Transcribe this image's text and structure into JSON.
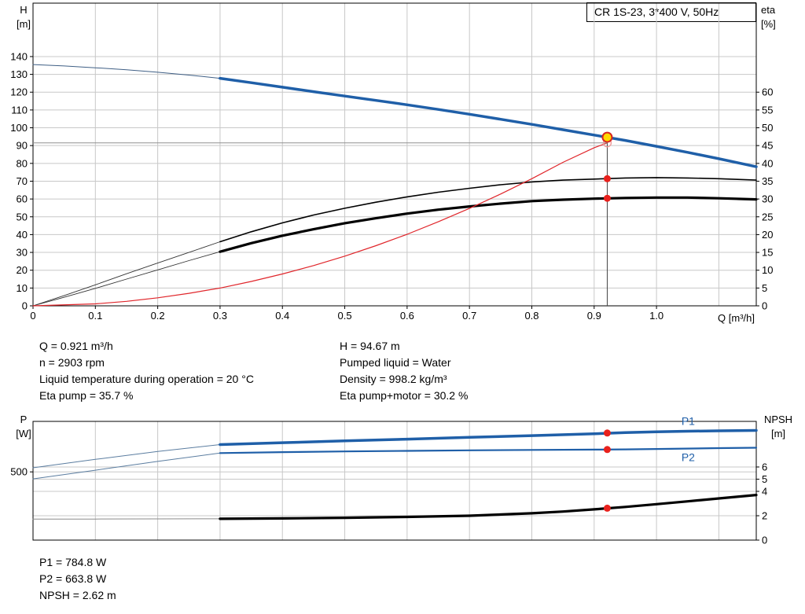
{
  "title_box": {
    "label": "CR 1S-23, 3*400 V, 50Hz"
  },
  "axes_headers": {
    "top_left_1": "H",
    "top_left_2": "[m]",
    "top_right_1": "eta",
    "top_right_2": "[%]",
    "bottom_left_1": "P",
    "bottom_left_2": "[W]",
    "bottom_right_1": "NPSH",
    "bottom_right_2": "[m]",
    "x_label": "Q [m³/h]"
  },
  "info": {
    "left_lines": [
      "Q = 0.921 m³/h",
      "n = 2903 rpm",
      "Liquid temperature during operation = 20 °C",
      "Eta pump = 35.7 %"
    ],
    "right_lines": [
      "H = 94.67 m",
      "Pumped liquid = Water",
      "Density = 998.2 kg/m³",
      "Eta pump+motor = 30.2 %"
    ],
    "bottom_lines": [
      "P1 = 784.8 W",
      "P2 = 663.8 W",
      "NPSH = 2.62 m"
    ]
  },
  "colors": {
    "grid": "#c8c8c8",
    "border": "#000000",
    "curve_blue": "#1f5fa8",
    "curve_black": "#000000",
    "curve_red": "#e0262b",
    "duty_yellow": "#ffd800",
    "duty_red": "#d8261f"
  },
  "chart_data": [
    {
      "type": "line",
      "title": "CR 1S-23, 3*400 V, 50Hz",
      "x": {
        "min": 0,
        "max": 1.16,
        "label": "Q [m³/h]",
        "ticks": [
          0,
          0.1,
          0.2,
          0.3,
          0.4,
          0.5,
          0.6,
          0.7,
          0.8,
          0.9,
          1.0
        ],
        "tick_labels": [
          "0",
          "0.1",
          "0.2",
          "0.3",
          "0.4",
          "0.5",
          "0.6",
          "0.7",
          "0.8",
          "0.9",
          "1.0"
        ],
        "grid": [
          0.1,
          0.2,
          0.3,
          0.4,
          0.5,
          0.6,
          0.7,
          0.8,
          0.9,
          1.0,
          1.1
        ]
      },
      "y_left": {
        "min": 0,
        "max": 170,
        "label": "H [m]",
        "ticks": [
          0,
          10,
          20,
          30,
          40,
          50,
          60,
          70,
          80,
          90,
          100,
          110,
          120,
          130,
          140
        ],
        "tick_labels": [
          "0",
          "10",
          "20",
          "30",
          "40",
          "50",
          "60",
          "70",
          "80",
          "90",
          "100",
          "110",
          "120",
          "130",
          "140"
        ],
        "grid": [
          10,
          20,
          30,
          40,
          50,
          60,
          70,
          80,
          90,
          100,
          110,
          120,
          130,
          140
        ]
      },
      "y_right": {
        "min": 0,
        "max": 85,
        "label": "eta [%]",
        "ticks": [
          0,
          5,
          10,
          15,
          20,
          25,
          30,
          35,
          40,
          45,
          50,
          55,
          60
        ],
        "tick_labels": [
          "0",
          "5",
          "10",
          "15",
          "20",
          "25",
          "30",
          "35",
          "40",
          "45",
          "50",
          "55",
          "60"
        ],
        "grid": []
      },
      "series": [
        {
          "name": "head-curve-ext",
          "axis": "left",
          "color": "#3f5f85",
          "width": 1,
          "points": [
            [
              0,
              135.5
            ],
            [
              0.05,
              134.7
            ],
            [
              0.1,
              133.7
            ],
            [
              0.15,
              132.6
            ],
            [
              0.2,
              131.2
            ],
            [
              0.25,
              129.6
            ],
            [
              0.3,
              127.8
            ]
          ]
        },
        {
          "name": "head-curve",
          "axis": "left",
          "color": "#1f5fa8",
          "width": 3.5,
          "points": [
            [
              0.3,
              127.8
            ],
            [
              0.35,
              125.3
            ],
            [
              0.4,
              122.8
            ],
            [
              0.45,
              120.3
            ],
            [
              0.5,
              117.8
            ],
            [
              0.55,
              115.4
            ],
            [
              0.6,
              112.9
            ],
            [
              0.65,
              110.3
            ],
            [
              0.7,
              107.6
            ],
            [
              0.75,
              104.8
            ],
            [
              0.8,
              101.9
            ],
            [
              0.85,
              98.9
            ],
            [
              0.9,
              95.9
            ],
            [
              0.95,
              92.9
            ],
            [
              1.0,
              89.6
            ],
            [
              1.05,
              86.2
            ],
            [
              1.1,
              82.6
            ],
            [
              1.16,
              78.1
            ]
          ]
        },
        {
          "name": "eta-pump-ext",
          "axis": "right",
          "color": "#333333",
          "width": 0.9,
          "points": [
            [
              0,
              0
            ],
            [
              0.05,
              2.9
            ],
            [
              0.1,
              5.9
            ],
            [
              0.15,
              9.0
            ],
            [
              0.2,
              12.0
            ],
            [
              0.25,
              15.0
            ],
            [
              0.3,
              18.0
            ]
          ]
        },
        {
          "name": "eta-pump-curve",
          "axis": "right",
          "color": "#000000",
          "width": 1.6,
          "points": [
            [
              0.3,
              18.0
            ],
            [
              0.35,
              20.8
            ],
            [
              0.4,
              23.3
            ],
            [
              0.45,
              25.5
            ],
            [
              0.5,
              27.4
            ],
            [
              0.55,
              29.1
            ],
            [
              0.6,
              30.6
            ],
            [
              0.65,
              31.9
            ],
            [
              0.7,
              33.0
            ],
            [
              0.75,
              34.0
            ],
            [
              0.8,
              34.8
            ],
            [
              0.85,
              35.3
            ],
            [
              0.9,
              35.6
            ],
            [
              0.95,
              35.9
            ],
            [
              1.0,
              36.0
            ],
            [
              1.05,
              35.9
            ],
            [
              1.1,
              35.7
            ],
            [
              1.16,
              35.3
            ]
          ]
        },
        {
          "name": "eta-pump-motor-ext",
          "axis": "right",
          "color": "#333333",
          "width": 0.9,
          "points": [
            [
              0,
              0
            ],
            [
              0.05,
              2.4
            ],
            [
              0.1,
              4.9
            ],
            [
              0.15,
              7.5
            ],
            [
              0.2,
              10.1
            ],
            [
              0.25,
              12.7
            ],
            [
              0.3,
              15.2
            ]
          ]
        },
        {
          "name": "eta-pump-motor-curve",
          "axis": "right",
          "color": "#000000",
          "width": 3.2,
          "points": [
            [
              0.3,
              15.2
            ],
            [
              0.35,
              17.6
            ],
            [
              0.4,
              19.7
            ],
            [
              0.45,
              21.5
            ],
            [
              0.5,
              23.2
            ],
            [
              0.55,
              24.6
            ],
            [
              0.6,
              25.9
            ],
            [
              0.65,
              27.0
            ],
            [
              0.7,
              27.9
            ],
            [
              0.75,
              28.7
            ],
            [
              0.8,
              29.4
            ],
            [
              0.85,
              29.8
            ],
            [
              0.9,
              30.1
            ],
            [
              0.95,
              30.3
            ],
            [
              1.0,
              30.4
            ],
            [
              1.05,
              30.4
            ],
            [
              1.1,
              30.2
            ],
            [
              1.16,
              29.9
            ]
          ]
        },
        {
          "name": "system-curve",
          "axis": "left",
          "color": "#e0262b",
          "width": 1.2,
          "points": [
            [
              0,
              0
            ],
            [
              0.1,
              1.1
            ],
            [
              0.15,
              2.5
            ],
            [
              0.2,
              4.5
            ],
            [
              0.25,
              7.0
            ],
            [
              0.3,
              10.0
            ],
            [
              0.35,
              13.7
            ],
            [
              0.4,
              17.9
            ],
            [
              0.45,
              22.6
            ],
            [
              0.5,
              27.9
            ],
            [
              0.55,
              33.8
            ],
            [
              0.6,
              40.2
            ],
            [
              0.65,
              47.2
            ],
            [
              0.7,
              54.7
            ],
            [
              0.75,
              62.8
            ],
            [
              0.8,
              71.4
            ],
            [
              0.85,
              80.6
            ],
            [
              0.9,
              88.8
            ],
            [
              0.921,
              91.5
            ]
          ]
        }
      ],
      "markers": [
        {
          "type": "vline",
          "axis": "left",
          "x": 0.921,
          "y1": 0,
          "y2": 94.67,
          "color": "#444444",
          "width": 1,
          "name": "duty-q-line"
        },
        {
          "type": "hline",
          "axis": "left",
          "y": 91.5,
          "x1": 0,
          "x2": 0.921,
          "color": "#8f8f8f",
          "width": 1,
          "name": "duty-h-line"
        },
        {
          "type": "circle",
          "axis": "left",
          "x": 0.921,
          "y": 91.5,
          "r": 5,
          "fill": "none",
          "stroke": "#ef9a9a",
          "width": 1.4,
          "name": "calculated-duty-point"
        },
        {
          "type": "circle",
          "axis": "left",
          "x": 0.921,
          "y": 94.67,
          "r": 6,
          "fill": "#ffd800",
          "stroke": "#d8261f",
          "width": 2,
          "name": "duty-point"
        },
        {
          "type": "circle",
          "axis": "right",
          "x": 0.921,
          "y": 35.7,
          "r": 4.5,
          "fill": "#e8211d",
          "stroke": "none",
          "width": 0,
          "name": "eta-pump-point"
        },
        {
          "type": "circle",
          "axis": "right",
          "x": 0.921,
          "y": 30.2,
          "r": 4.5,
          "fill": "#e8211d",
          "stroke": "none",
          "width": 0,
          "name": "eta-pump-motor-point"
        }
      ]
    },
    {
      "type": "line",
      "title": "",
      "x": {
        "min": 0,
        "max": 1.16,
        "label": "",
        "ticks": [],
        "tick_labels": [],
        "grid": [
          0.1,
          0.2,
          0.3,
          0.4,
          0.5,
          0.6,
          0.7,
          0.8,
          0.9,
          1.0,
          1.1
        ]
      },
      "y_left": {
        "min": 0,
        "max": 870,
        "label": "P [W]",
        "ticks": [
          500
        ],
        "tick_labels": [
          "500"
        ],
        "grid": [
          500
        ]
      },
      "y_right": {
        "min": 0,
        "max": 9.74,
        "label": "NPSH [m]",
        "ticks": [
          0,
          2,
          4,
          5,
          6
        ],
        "tick_labels": [
          "0",
          "2",
          "4",
          "5",
          "6"
        ],
        "grid": [
          2,
          4,
          5,
          6
        ]
      },
      "series": [
        {
          "name": "p1-curve-ext",
          "axis": "left",
          "color": "#5b7da0",
          "width": 1,
          "points": [
            [
              0,
              530
            ],
            [
              0.1,
              592
            ],
            [
              0.2,
              650
            ],
            [
              0.3,
              700
            ]
          ]
        },
        {
          "name": "p1-curve",
          "axis": "left",
          "color": "#1f5fa8",
          "width": 3.5,
          "points": [
            [
              0.3,
              700
            ],
            [
              0.4,
              714
            ],
            [
              0.5,
              727
            ],
            [
              0.6,
              740
            ],
            [
              0.7,
              753
            ],
            [
              0.8,
              766
            ],
            [
              0.9,
              779
            ],
            [
              0.95,
              788
            ],
            [
              1.0,
              794
            ],
            [
              1.05,
              798
            ],
            [
              1.1,
              801
            ],
            [
              1.16,
              804
            ]
          ]
        },
        {
          "name": "p2-curve-ext",
          "axis": "left",
          "color": "#5b7da0",
          "width": 1,
          "points": [
            [
              0,
              449
            ],
            [
              0.1,
              512
            ],
            [
              0.2,
              577
            ],
            [
              0.3,
              638
            ]
          ]
        },
        {
          "name": "p2-curve",
          "axis": "left",
          "color": "#1f5fa8",
          "width": 2.2,
          "points": [
            [
              0.3,
              638
            ],
            [
              0.4,
              645
            ],
            [
              0.5,
              650
            ],
            [
              0.6,
              654
            ],
            [
              0.7,
              658
            ],
            [
              0.8,
              661
            ],
            [
              0.9,
              663
            ],
            [
              0.95,
              665
            ],
            [
              1.0,
              668
            ],
            [
              1.1,
              674
            ],
            [
              1.16,
              677
            ]
          ]
        },
        {
          "name": "npsh-curve-ext",
          "axis": "right",
          "color": "#8a8a8a",
          "width": 1,
          "points": [
            [
              0,
              1.72
            ],
            [
              0.1,
              1.73
            ],
            [
              0.2,
              1.74
            ],
            [
              0.3,
              1.75
            ]
          ]
        },
        {
          "name": "npsh-curve",
          "axis": "right",
          "color": "#000000",
          "width": 3.2,
          "points": [
            [
              0.3,
              1.75
            ],
            [
              0.4,
              1.78
            ],
            [
              0.5,
              1.83
            ],
            [
              0.6,
              1.9
            ],
            [
              0.7,
              2.0
            ],
            [
              0.8,
              2.2
            ],
            [
              0.85,
              2.34
            ],
            [
              0.9,
              2.52
            ],
            [
              0.95,
              2.72
            ],
            [
              1.0,
              2.95
            ],
            [
              1.05,
              3.18
            ],
            [
              1.1,
              3.42
            ],
            [
              1.16,
              3.7
            ]
          ]
        }
      ],
      "markers": [
        {
          "type": "circle",
          "axis": "left",
          "x": 0.921,
          "y": 784.8,
          "r": 4.5,
          "fill": "#e8211d",
          "stroke": "none",
          "width": 0,
          "name": "p1-duty-point"
        },
        {
          "type": "circle",
          "axis": "left",
          "x": 0.921,
          "y": 663.8,
          "r": 4.5,
          "fill": "#e8211d",
          "stroke": "none",
          "width": 0,
          "name": "p2-duty-point"
        },
        {
          "type": "circle",
          "axis": "right",
          "x": 0.921,
          "y": 2.62,
          "r": 4.5,
          "fill": "#e8211d",
          "stroke": "none",
          "width": 0,
          "name": "npsh-duty-point"
        },
        {
          "type": "text",
          "axis": "left",
          "x": 1.04,
          "y": 845,
          "text": "P1",
          "color": "#1f5fa8",
          "name": "p1-series-label"
        },
        {
          "type": "text",
          "axis": "left",
          "x": 1.04,
          "y": 580,
          "text": "P2",
          "color": "#1f5fa8",
          "name": "p2-series-label"
        }
      ]
    }
  ]
}
